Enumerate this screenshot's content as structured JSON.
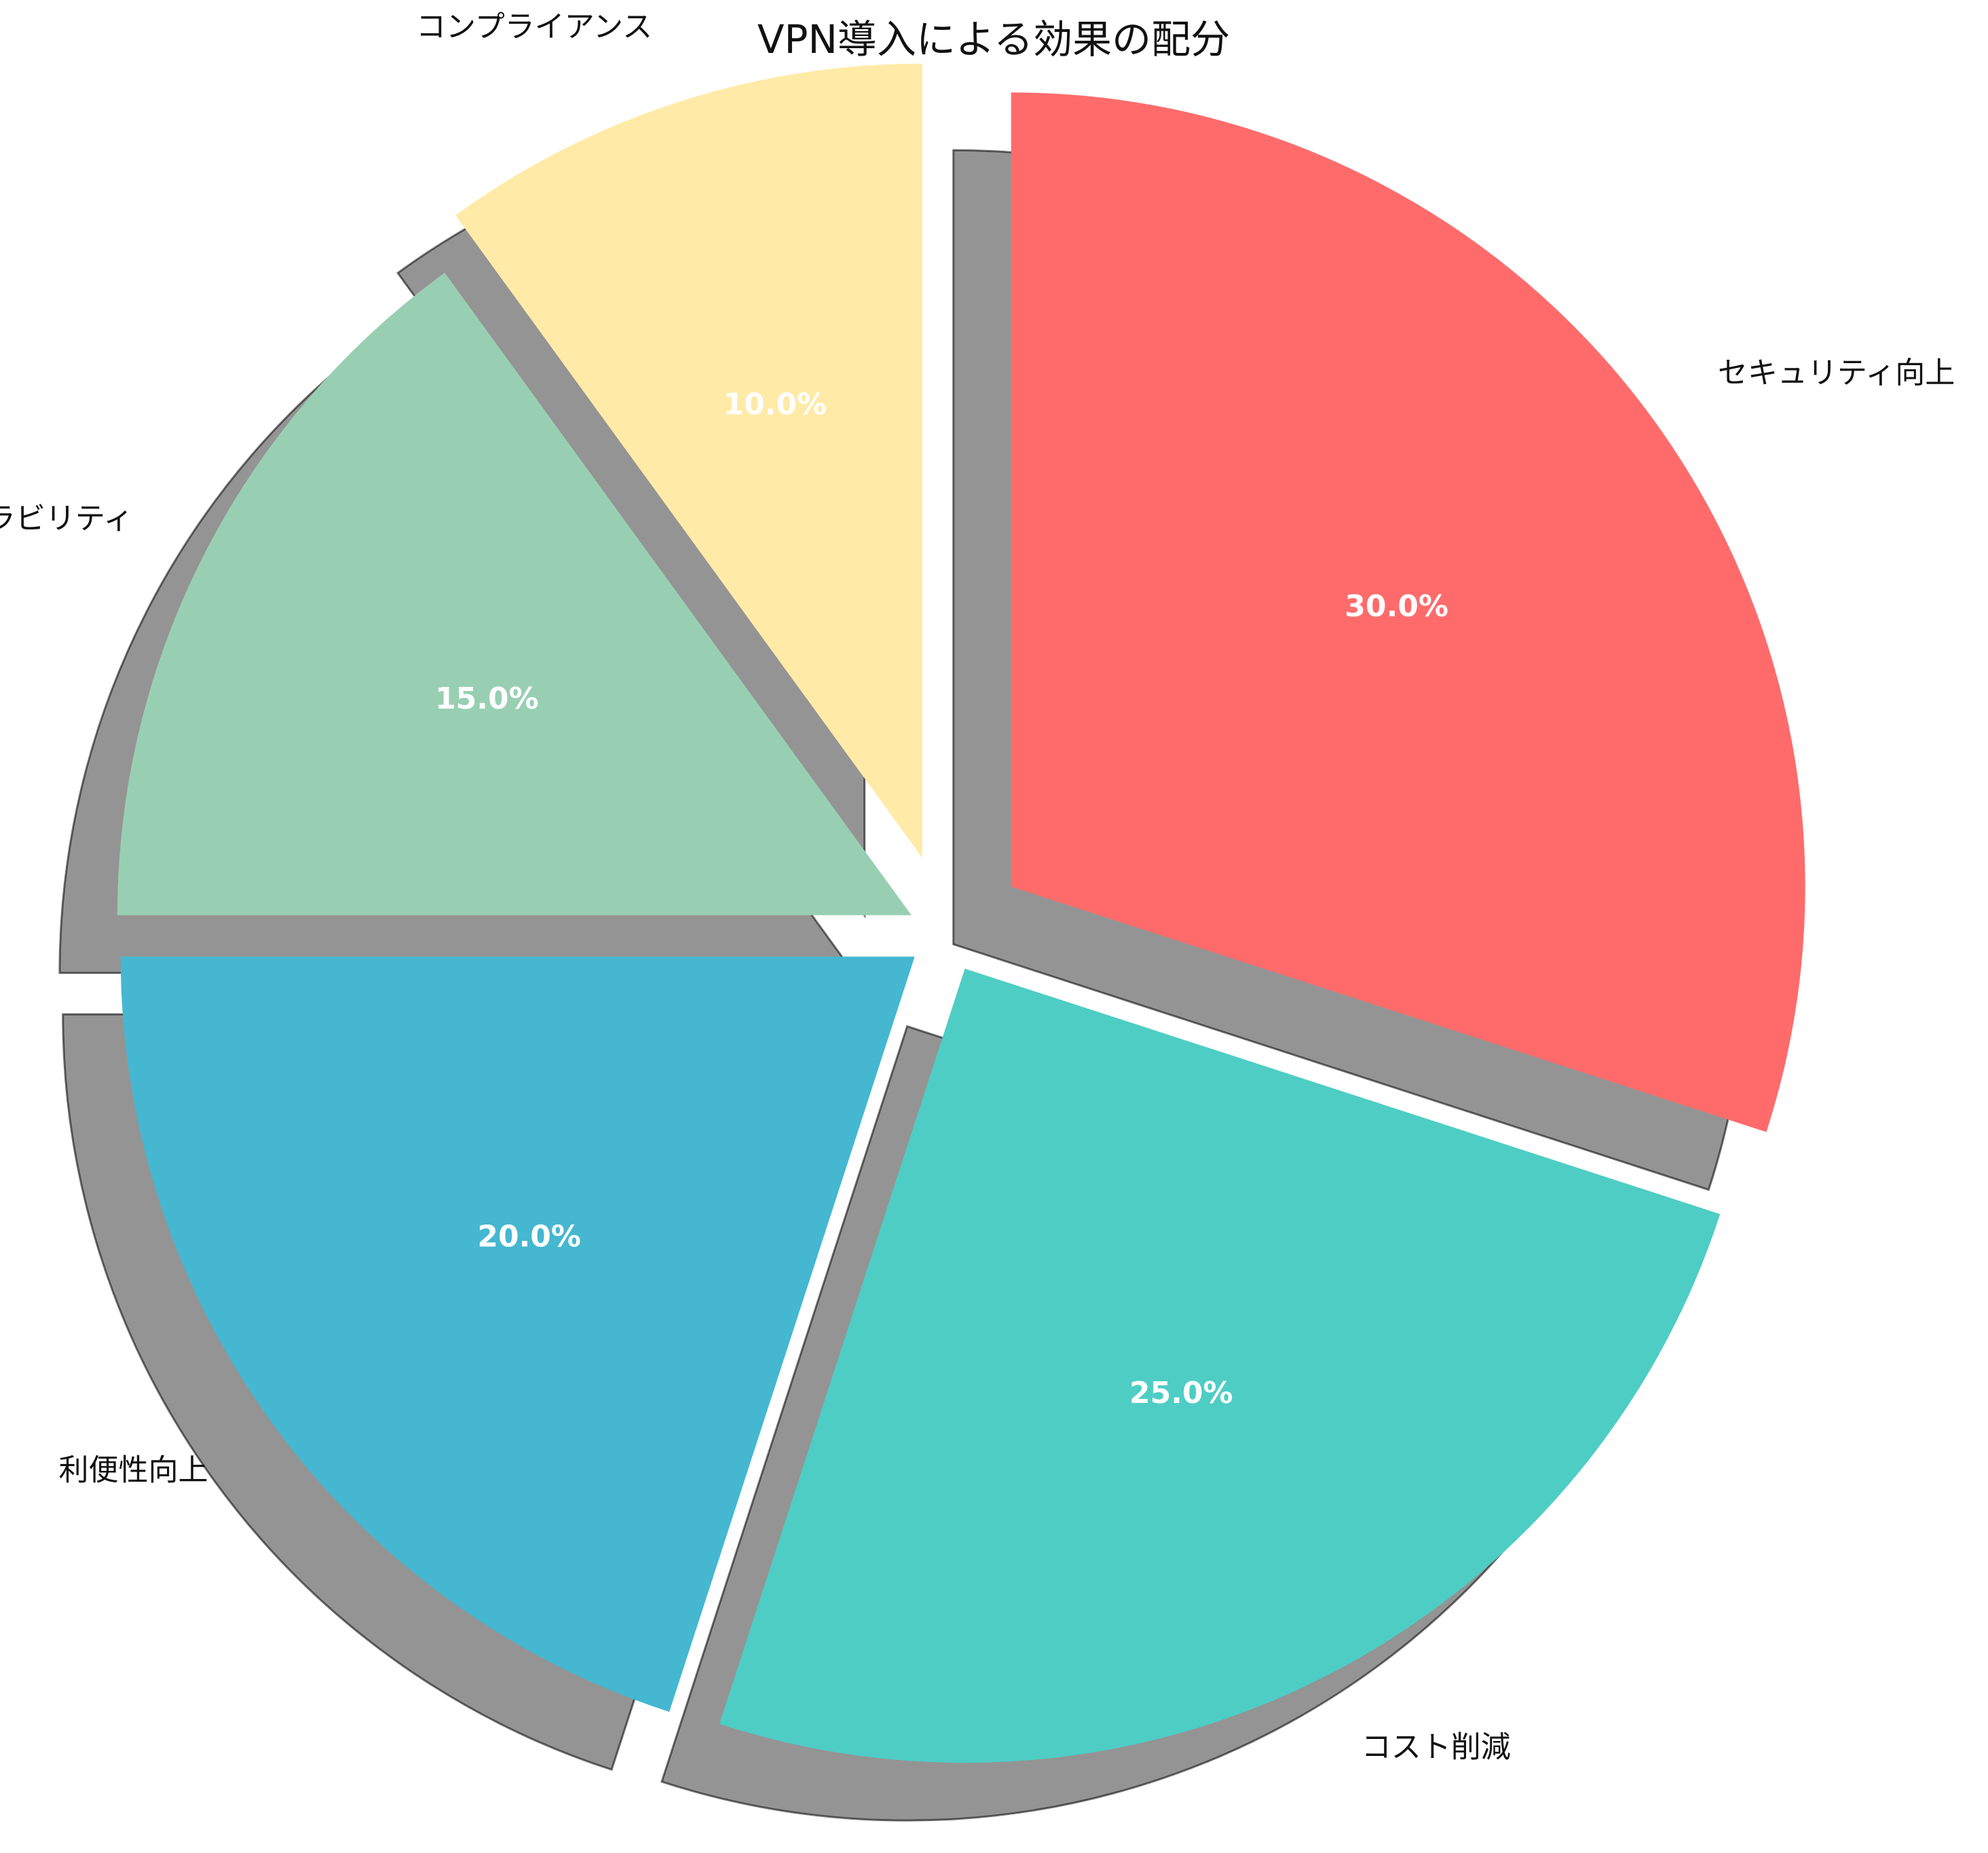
{
  "chart_data": {
    "type": "pie",
    "title": "VPN導入による効果の配分",
    "start_angle_deg": 90,
    "direction": "clockwise",
    "shadow": true,
    "slices": [
      {
        "label": "セキュリティ向上",
        "value": 30,
        "pct_label": "30.0%",
        "color": "#FF6B6B",
        "explode": 0.1
      },
      {
        "label": "コスト削減",
        "value": 25,
        "pct_label": "25.0%",
        "color": "#4ECDC4",
        "explode": 0.05
      },
      {
        "label": "利便性向上",
        "value": 20,
        "pct_label": "20.0%",
        "color": "#45B7D1",
        "explode": 0.05
      },
      {
        "label": "スケーラビリティ",
        "value": 15,
        "pct_label": "15.0%",
        "color": "#98CFB2",
        "explode": 0.05
      },
      {
        "label": "コンプライアンス",
        "value": 10,
        "pct_label": "10.0%",
        "color": "#FFEAA7",
        "explode": 0.1
      }
    ]
  }
}
